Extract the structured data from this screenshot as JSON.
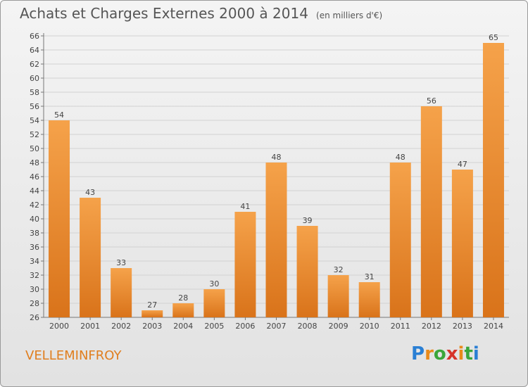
{
  "header": {
    "title": "Achats et Charges Externes 2000 à 2014",
    "subtitle": "(en milliers d'€)"
  },
  "footer": {
    "commune": "VELLEMINFROY",
    "logo": "Proxiti"
  },
  "colors": {
    "bar_light": "#f5a24a",
    "bar_dark": "#d9731a",
    "title": "#555555",
    "commune": "#e07e1f"
  },
  "chart_data": {
    "type": "bar",
    "title": "Achats et Charges Externes 2000 à 2014",
    "subtitle": "(en milliers d'€)",
    "categories": [
      "2000",
      "2001",
      "2002",
      "2003",
      "2004",
      "2005",
      "2006",
      "2007",
      "2008",
      "2009",
      "2010",
      "2011",
      "2012",
      "2013",
      "2014"
    ],
    "values": [
      54,
      43,
      33,
      27,
      28,
      30,
      41,
      48,
      39,
      32,
      31,
      48,
      56,
      47,
      65
    ],
    "xlabel": "",
    "ylabel": "",
    "ylim": [
      26,
      66
    ],
    "yticks": [
      26,
      28,
      30,
      32,
      34,
      36,
      38,
      40,
      42,
      44,
      46,
      48,
      50,
      52,
      54,
      56,
      58,
      60,
      62,
      64,
      66
    ],
    "grid": true,
    "legend": "none"
  }
}
